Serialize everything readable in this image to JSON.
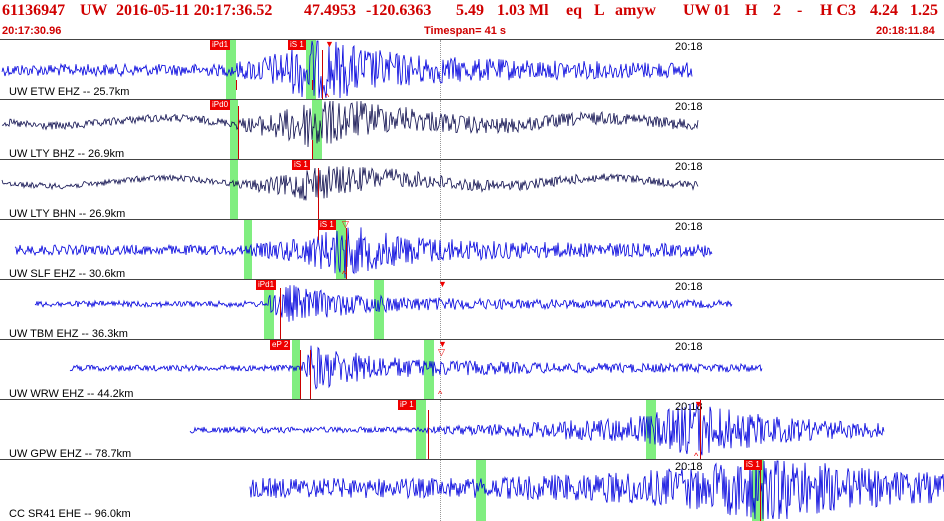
{
  "header": {
    "event_id": "61136947",
    "network": "UW",
    "datetime": "2016-05-11 20:17:36.52",
    "lat": "47.4953",
    "lon": "-120.6363",
    "depth": "5.49",
    "magnitude": "1.03 Ml",
    "etype": "eq",
    "gtype": "L",
    "author": "amyw",
    "source": "UW 01",
    "quality": "H",
    "version": "2",
    "dash": "-",
    "review": "H C3",
    "gap": "4.24",
    "rms": "1.25"
  },
  "subheader": {
    "start_time": "20:17:30.96",
    "timespan": "Timespan=  41 s",
    "end_time": "20:18:11.84"
  },
  "colors": {
    "header": "#d00000",
    "trace": "#0000dd",
    "trace_dark": "#101050",
    "pick": "#ee0000",
    "window": "#80ee80"
  },
  "channels": [
    {
      "label": "UW ETW EHZ -- 25.7km",
      "time_tick": "20:18",
      "picks": [
        {
          "text": "iPd1"
        },
        {
          "text": "iS 1"
        }
      ]
    },
    {
      "label": "UW LTY BHZ -- 26.9km",
      "time_tick": "20:18",
      "picks": [
        {
          "text": "iPd0"
        }
      ]
    },
    {
      "label": "UW LTY BHN -- 26.9km",
      "time_tick": "20:18",
      "picks": [
        {
          "text": "iS 1"
        }
      ]
    },
    {
      "label": "UW SLF EHZ -- 30.6km",
      "time_tick": "20:18",
      "picks": [
        {
          "text": "iS 1"
        }
      ]
    },
    {
      "label": "UW TBM EHZ -- 36.3km",
      "time_tick": "20:18",
      "picks": [
        {
          "text": "iPd1"
        }
      ]
    },
    {
      "label": "UW WRW EHZ -- 44.2km",
      "time_tick": "20:18",
      "picks": [
        {
          "text": "eP 2"
        }
      ]
    },
    {
      "label": "UW GPW EHZ -- 78.7km",
      "time_tick": "20:18",
      "picks": [
        {
          "text": "iP 1"
        }
      ]
    },
    {
      "label": "CC SR41 EHE -- 96.0km",
      "time_tick": "20:18",
      "picks": [
        {
          "text": "iS 1"
        }
      ]
    }
  ]
}
